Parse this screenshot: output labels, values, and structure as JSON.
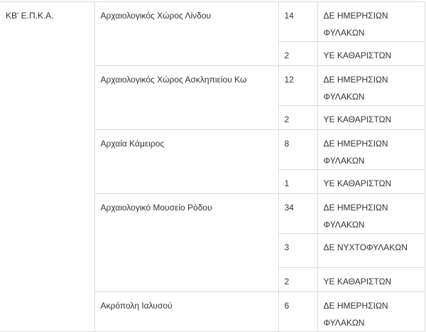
{
  "table": {
    "org": "ΚΒ' Ε.Π.Κ.Α.",
    "sites": [
      {
        "name": "Αρχαιολογικός Χώρος Λίνδου",
        "positions": [
          {
            "count": "14",
            "role": "ΔΕ ΗΜΕΡΗΣΙΩΝ ΦΥΛΑΚΩΝ"
          },
          {
            "count": "2",
            "role": "ΥΕ ΚΑΘΑΡΙΣΤΩΝ"
          }
        ]
      },
      {
        "name": "Αρχαιολογικός Χώρος Ασκληπιείου Κω",
        "positions": [
          {
            "count": "12",
            "role": "ΔΕ ΗΜΕΡΗΣΙΩΝ ΦΥΛΑΚΩΝ"
          },
          {
            "count": "2",
            "role": "ΥΕ ΚΑΘΑΡΙΣΤΩΝ"
          }
        ]
      },
      {
        "name": "Αρχαία Κάμειρος",
        "positions": [
          {
            "count": "8",
            "role": "ΔΕ ΗΜΕΡΗΣΙΩΝ ΦΥΛΑΚΩΝ"
          },
          {
            "count": "1",
            "role": "ΥΕ ΚΑΘΑΡΙΣΤΩΝ"
          }
        ]
      },
      {
        "name": "Αρχαιολογικό Μουσείο Ρόδου",
        "positions": [
          {
            "count": "34",
            "role": "ΔΕ ΗΜΕΡΗΣΙΩΝ ΦΥΛΑΚΩΝ"
          },
          {
            "count": "3",
            "role": "ΔΕ ΝΥΧΤΟΦΥΛΑΚΩΝ"
          },
          {
            "count": "2",
            "role": "ΥΕ ΚΑΘΑΡΙΣΤΩΝ"
          }
        ]
      },
      {
        "name": "Ακρόπολη Ιαλυσού",
        "positions": [
          {
            "count": "6",
            "role": "ΔΕ ΗΜΕΡΗΣΙΩΝ ΦΥΛΑΚΩΝ"
          }
        ]
      }
    ]
  }
}
